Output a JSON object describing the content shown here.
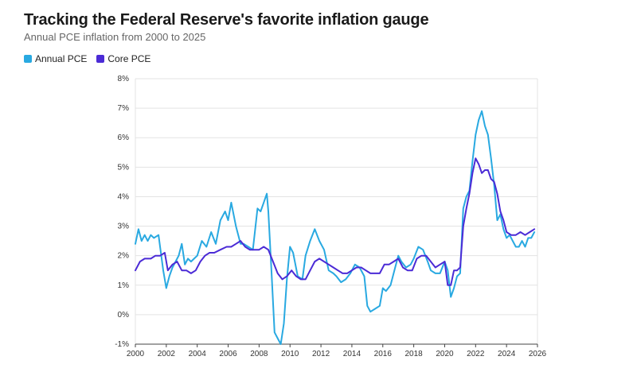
{
  "chart_data": {
    "type": "line",
    "title": "Tracking the Federal Reserve's favorite inflation gauge",
    "subtitle": "Annual PCE inflation from 2000 to 2025",
    "xlabel": "",
    "ylabel": "",
    "xlim": [
      2000,
      2026
    ],
    "ylim": [
      -1,
      8
    ],
    "x_ticks": [
      "2000",
      "2002",
      "2004",
      "2006",
      "2008",
      "2010",
      "2012",
      "2014",
      "2016",
      "2018",
      "2020",
      "2022",
      "2024",
      "2026"
    ],
    "y_ticks": [
      "-1%",
      "0%",
      "1%",
      "2%",
      "3%",
      "4%",
      "5%",
      "6%",
      "7%",
      "8%"
    ],
    "grid": true,
    "legend_position": "top-left",
    "series": [
      {
        "name": "Annual PCE",
        "color": "#29a9e1",
        "x": [
          2000.0,
          2000.2,
          2000.4,
          2000.6,
          2000.8,
          2001.0,
          2001.2,
          2001.5,
          2001.8,
          2002.0,
          2002.2,
          2002.4,
          2002.6,
          2002.8,
          2003.0,
          2003.2,
          2003.4,
          2003.6,
          2003.8,
          2004.0,
          2004.3,
          2004.6,
          2004.9,
          2005.2,
          2005.5,
          2005.8,
          2006.0,
          2006.2,
          2006.5,
          2006.8,
          2007.0,
          2007.3,
          2007.6,
          2007.9,
          2008.1,
          2008.3,
          2008.5,
          2008.6,
          2008.8,
          2009.0,
          2009.2,
          2009.4,
          2009.6,
          2009.8,
          2010.0,
          2010.2,
          2010.5,
          2010.8,
          2011.0,
          2011.3,
          2011.6,
          2011.9,
          2012.2,
          2012.5,
          2012.8,
          2013.0,
          2013.3,
          2013.6,
          2013.9,
          2014.2,
          2014.5,
          2014.8,
          2015.0,
          2015.2,
          2015.5,
          2015.8,
          2016.0,
          2016.2,
          2016.5,
          2016.8,
          2017.0,
          2017.2,
          2017.5,
          2017.8,
          2018.0,
          2018.3,
          2018.6,
          2018.9,
          2019.1,
          2019.4,
          2019.7,
          2020.0,
          2020.2,
          2020.4,
          2020.6,
          2020.8,
          2021.0,
          2021.2,
          2021.4,
          2021.6,
          2021.8,
          2022.0,
          2022.2,
          2022.4,
          2022.6,
          2022.8,
          2023.0,
          2023.2,
          2023.4,
          2023.6,
          2023.8,
          2024.0,
          2024.2,
          2024.4,
          2024.6,
          2024.8,
          2025.0,
          2025.2,
          2025.4,
          2025.6,
          2025.8
        ],
        "values": [
          2.4,
          2.9,
          2.5,
          2.7,
          2.5,
          2.7,
          2.6,
          2.7,
          1.5,
          0.9,
          1.3,
          1.6,
          1.8,
          2.0,
          2.4,
          1.7,
          1.9,
          1.8,
          1.9,
          2.0,
          2.5,
          2.3,
          2.8,
          2.4,
          3.2,
          3.5,
          3.2,
          3.8,
          3.0,
          2.4,
          2.4,
          2.3,
          2.2,
          3.6,
          3.5,
          3.8,
          4.1,
          3.5,
          1.5,
          -0.6,
          -0.8,
          -1.0,
          -0.3,
          1.2,
          2.3,
          2.1,
          1.3,
          1.2,
          2.0,
          2.5,
          2.9,
          2.5,
          2.2,
          1.5,
          1.4,
          1.3,
          1.1,
          1.2,
          1.4,
          1.7,
          1.6,
          1.3,
          0.3,
          0.1,
          0.2,
          0.3,
          0.9,
          0.8,
          1.0,
          1.6,
          2.0,
          1.8,
          1.6,
          1.7,
          1.9,
          2.3,
          2.2,
          1.8,
          1.5,
          1.4,
          1.4,
          1.8,
          1.5,
          0.6,
          0.9,
          1.3,
          1.4,
          3.6,
          4.0,
          4.2,
          5.2,
          6.1,
          6.6,
          6.9,
          6.4,
          6.1,
          5.3,
          4.4,
          3.2,
          3.4,
          2.9,
          2.6,
          2.7,
          2.5,
          2.3,
          2.3,
          2.5,
          2.3,
          2.6,
          2.6,
          2.8
        ]
      },
      {
        "name": "Core PCE",
        "color": "#4b2bd6",
        "x": [
          2000.0,
          2000.3,
          2000.6,
          2001.0,
          2001.3,
          2001.6,
          2001.9,
          2002.1,
          2002.4,
          2002.7,
          2003.0,
          2003.3,
          2003.6,
          2003.9,
          2004.2,
          2004.5,
          2004.8,
          2005.1,
          2005.5,
          2005.9,
          2006.2,
          2006.5,
          2006.8,
          2007.1,
          2007.4,
          2007.7,
          2008.0,
          2008.3,
          2008.6,
          2008.9,
          2009.2,
          2009.5,
          2009.8,
          2010.1,
          2010.4,
          2010.7,
          2011.0,
          2011.3,
          2011.6,
          2011.9,
          2012.2,
          2012.5,
          2012.8,
          2013.1,
          2013.4,
          2013.7,
          2014.0,
          2014.3,
          2014.6,
          2014.9,
          2015.2,
          2015.5,
          2015.8,
          2016.1,
          2016.4,
          2016.7,
          2017.0,
          2017.3,
          2017.6,
          2017.9,
          2018.2,
          2018.5,
          2018.8,
          2019.1,
          2019.4,
          2019.7,
          2020.0,
          2020.2,
          2020.4,
          2020.6,
          2020.8,
          2021.0,
          2021.2,
          2021.4,
          2021.6,
          2021.8,
          2022.0,
          2022.2,
          2022.4,
          2022.6,
          2022.8,
          2023.0,
          2023.2,
          2023.4,
          2023.6,
          2023.8,
          2024.0,
          2024.3,
          2024.6,
          2024.9,
          2025.2,
          2025.5,
          2025.8
        ],
        "values": [
          1.5,
          1.8,
          1.9,
          1.9,
          2.0,
          2.0,
          2.1,
          1.5,
          1.7,
          1.8,
          1.5,
          1.5,
          1.4,
          1.5,
          1.8,
          2.0,
          2.1,
          2.1,
          2.2,
          2.3,
          2.3,
          2.4,
          2.5,
          2.3,
          2.2,
          2.2,
          2.2,
          2.3,
          2.2,
          1.8,
          1.4,
          1.2,
          1.3,
          1.5,
          1.3,
          1.2,
          1.2,
          1.5,
          1.8,
          1.9,
          1.8,
          1.7,
          1.6,
          1.5,
          1.4,
          1.4,
          1.5,
          1.6,
          1.6,
          1.5,
          1.4,
          1.4,
          1.4,
          1.7,
          1.7,
          1.8,
          1.9,
          1.6,
          1.5,
          1.5,
          1.9,
          2.0,
          2.0,
          1.8,
          1.6,
          1.7,
          1.8,
          1.0,
          1.0,
          1.5,
          1.5,
          1.6,
          3.0,
          3.6,
          4.1,
          4.8,
          5.3,
          5.1,
          4.8,
          4.9,
          4.9,
          4.6,
          4.5,
          4.1,
          3.5,
          3.2,
          2.8,
          2.7,
          2.7,
          2.8,
          2.7,
          2.8,
          2.9
        ]
      }
    ]
  }
}
